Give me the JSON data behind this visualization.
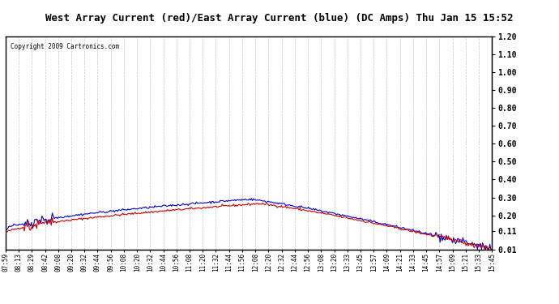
{
  "title": "West Array Current (red)/East Array Current (blue) (DC Amps) Thu Jan 15 15:52",
  "copyright": "Copyright 2009 Cartronics.com",
  "x_labels": [
    "07:59",
    "08:13",
    "08:29",
    "08:42",
    "09:08",
    "09:20",
    "09:32",
    "09:44",
    "09:56",
    "10:08",
    "10:20",
    "10:32",
    "10:44",
    "10:56",
    "11:08",
    "11:20",
    "11:32",
    "11:44",
    "11:56",
    "12:08",
    "12:20",
    "12:32",
    "12:44",
    "12:56",
    "13:08",
    "13:20",
    "13:33",
    "13:45",
    "13:57",
    "14:09",
    "14:21",
    "14:33",
    "14:45",
    "14:57",
    "15:09",
    "15:21",
    "15:33",
    "15:45"
  ],
  "y_ticks": [
    0.01,
    0.11,
    0.2,
    0.3,
    0.4,
    0.5,
    0.6,
    0.7,
    0.8,
    0.9,
    1.0,
    1.1,
    1.2
  ],
  "y_min": 0.01,
  "y_max": 1.2,
  "background_color": "#ffffff",
  "plot_background": "#ffffff",
  "grid_color": "#aaaaaa",
  "title_background": "#dddddd",
  "west_color": "#cc0000",
  "east_color": "#0000cc"
}
